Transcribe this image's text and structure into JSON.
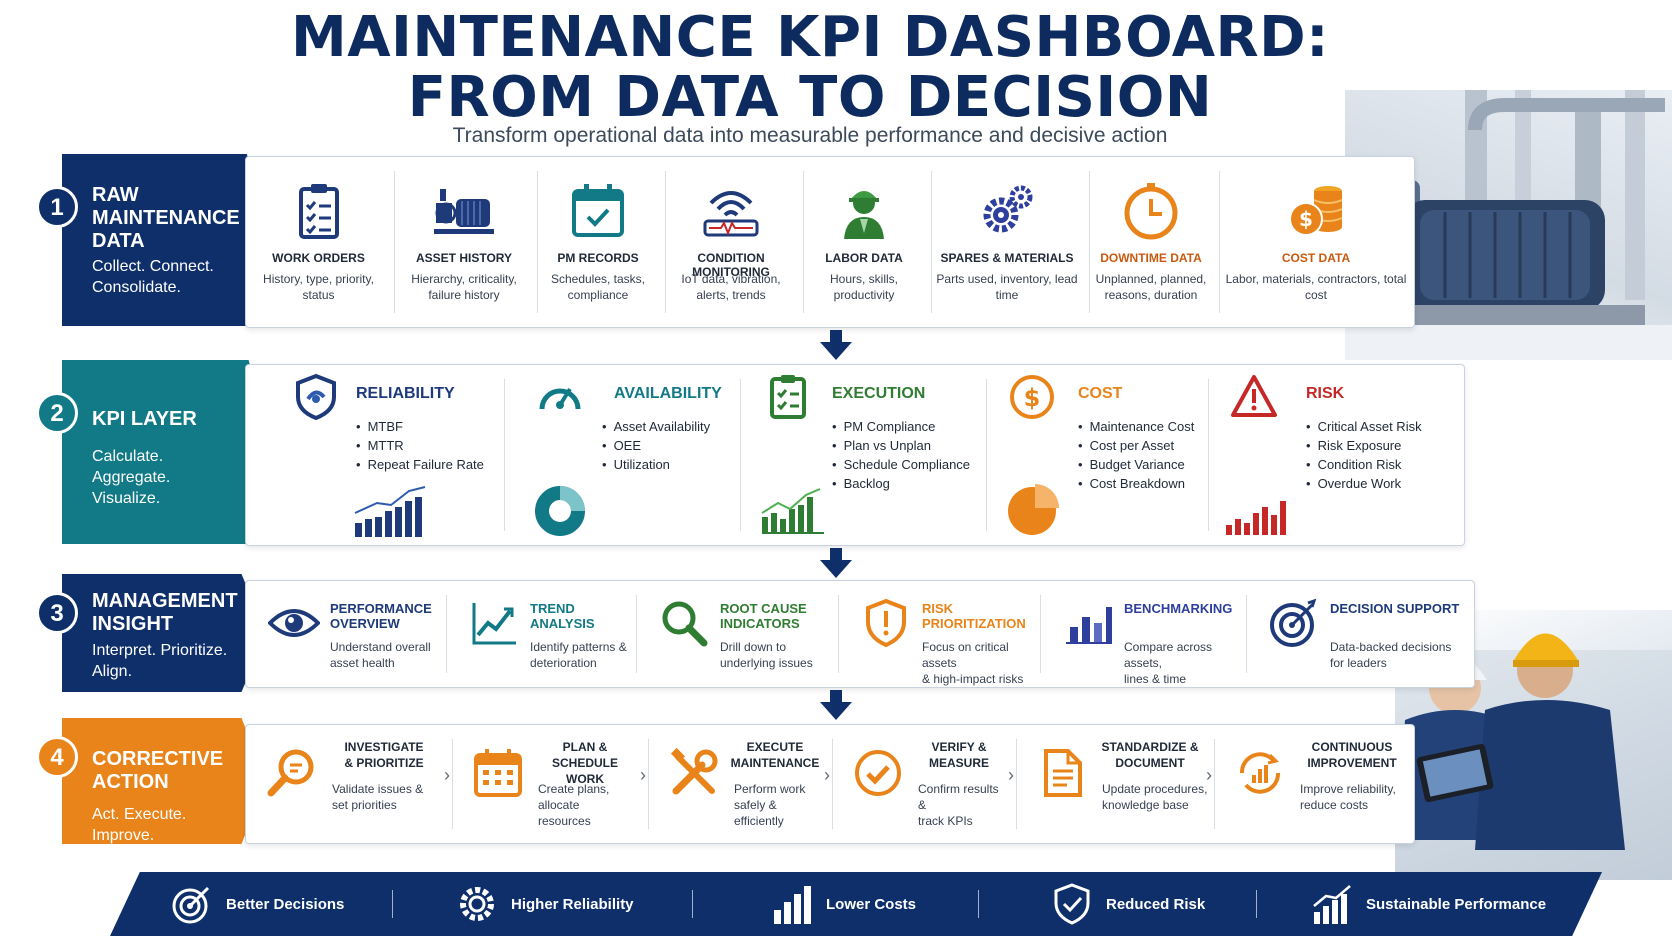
{
  "header": {
    "title_line1": "MAINTENANCE KPI DASHBOARD:",
    "title_line2": "FROM DATA TO DECISION",
    "subtitle": "Transform operational data into measurable performance and decisive action"
  },
  "colors": {
    "navy": "#0f2f6b",
    "teal": "#127a86",
    "orange": "#e8841a",
    "red": "#c62828",
    "green": "#2f7d32"
  },
  "stages": [
    {
      "number": "1",
      "title": "RAW MAINTENANCE DATA",
      "description": "Collect. Connect. Consolidate.",
      "items": [
        {
          "label": "WORK ORDERS",
          "description": "History, type, priority, status",
          "icon": "clipboard-checklist-icon"
        },
        {
          "label": "ASSET HISTORY",
          "description": "Hierarchy, criticality, failure history",
          "icon": "pump-asset-icon"
        },
        {
          "label": "PM RECORDS",
          "description": "Schedules, tasks, compliance",
          "icon": "calendar-check-icon"
        },
        {
          "label": "CONDITION MONITORING",
          "description": "IoT data, vibration, alerts, trends",
          "icon": "sensor-wave-icon"
        },
        {
          "label": "LABOR DATA",
          "description": "Hours, skills, productivity",
          "icon": "worker-icon"
        },
        {
          "label": "SPARES & MATERIALS",
          "description": "Parts used, inventory, lead time",
          "icon": "gears-icon"
        },
        {
          "label": "DOWNTIME DATA",
          "description": "Unplanned, planned, reasons, duration",
          "icon": "clock-icon"
        },
        {
          "label": "COST DATA",
          "description": "Labor, materials, contractors, total cost",
          "icon": "coins-icon"
        }
      ]
    },
    {
      "number": "2",
      "title": "KPI LAYER",
      "description": "Calculate. Aggregate. Visualize.",
      "items": [
        {
          "label": "RELIABILITY",
          "bullets": [
            "MTBF",
            "MTTR",
            "Repeat Failure Rate"
          ],
          "icon": "shield-icon"
        },
        {
          "label": "AVAILABILITY",
          "bullets": [
            "Asset Availability",
            "OEE",
            "Utilization"
          ],
          "icon": "gauge-icon"
        },
        {
          "label": "EXECUTION",
          "bullets": [
            "PM Compliance",
            "Plan vs Unplan",
            "Schedule Compliance",
            "Backlog"
          ],
          "icon": "checklist-icon"
        },
        {
          "label": "COST",
          "bullets": [
            "Maintenance Cost",
            "Cost per Asset",
            "Budget Variance",
            "Cost Breakdown"
          ],
          "icon": "dollar-icon"
        },
        {
          "label": "RISK",
          "bullets": [
            "Critical Asset Risk",
            "Risk Exposure",
            "Condition Risk",
            "Overdue Work"
          ],
          "icon": "warning-icon"
        }
      ]
    },
    {
      "number": "3",
      "title": "MANAGEMENT INSIGHT",
      "description": "Interpret. Prioritize. Align.",
      "items": [
        {
          "label_line1": "PERFORMANCE",
          "label_line2": "OVERVIEW",
          "desc_line1": "Understand overall",
          "desc_line2": "asset health",
          "icon": "eye-icon"
        },
        {
          "label_line1": "TREND ANALYSIS",
          "label_line2": "",
          "desc_line1": "Identify patterns &",
          "desc_line2": "deterioration",
          "icon": "trend-chart-icon"
        },
        {
          "label_line1": "ROOT CAUSE",
          "label_line2": "INDICATORS",
          "desc_line1": "Drill down to",
          "desc_line2": "underlying issues",
          "icon": "magnifier-icon"
        },
        {
          "label_line1": "RISK PRIORITIZATION",
          "label_line2": "",
          "desc_line1": "Focus on critical assets",
          "desc_line2": "& high-impact risks",
          "icon": "shield-alert-icon"
        },
        {
          "label_line1": "BENCHMARKING",
          "label_line2": "",
          "desc_line1": "Compare across assets,",
          "desc_line2": "lines & time",
          "icon": "bar-chart-icon"
        },
        {
          "label_line1": "DECISION SUPPORT",
          "label_line2": "",
          "desc_line1": "Data-backed decisions",
          "desc_line2": "for leaders",
          "icon": "target-icon"
        }
      ]
    },
    {
      "number": "4",
      "title": "CORRECTIVE ACTION",
      "description": "Act. Execute. Improve.",
      "items": [
        {
          "label_line1": "INVESTIGATE",
          "label_line2": "& PRIORITIZE",
          "desc_line1": "Validate issues &",
          "desc_line2": "set priorities",
          "icon": "search-icon"
        },
        {
          "label_line1": "PLAN & SCHEDULE",
          "label_line2": "WORK",
          "desc_line1": "Create plans, allocate",
          "desc_line2": "resources",
          "icon": "calendar-icon"
        },
        {
          "label_line1": "EXECUTE",
          "label_line2": "MAINTENANCE",
          "desc_line1": "Perform work safely &",
          "desc_line2": "efficiently",
          "icon": "tools-icon"
        },
        {
          "label_line1": "VERIFY &",
          "label_line2": "MEASURE",
          "desc_line1": "Confirm results &",
          "desc_line2": "track KPIs",
          "icon": "check-circle-icon"
        },
        {
          "label_line1": "STANDARDIZE &",
          "label_line2": "DOCUMENT",
          "desc_line1": "Update procedures,",
          "desc_line2": "knowledge base",
          "icon": "document-icon"
        },
        {
          "label_line1": "CONTINUOUS",
          "label_line2": "IMPROVEMENT",
          "desc_line1": "Improve reliability,",
          "desc_line2": "reduce costs",
          "icon": "cycle-chart-icon"
        }
      ]
    }
  ],
  "outcomes": [
    {
      "label": "Better Decisions",
      "icon": "target-icon"
    },
    {
      "label": "Higher Reliability",
      "icon": "gear-icon"
    },
    {
      "label": "Lower Costs",
      "icon": "bar-chart-icon"
    },
    {
      "label": "Reduced Risk",
      "icon": "shield-check-icon"
    },
    {
      "label": "Sustainable Performance",
      "icon": "growth-chart-icon"
    }
  ]
}
